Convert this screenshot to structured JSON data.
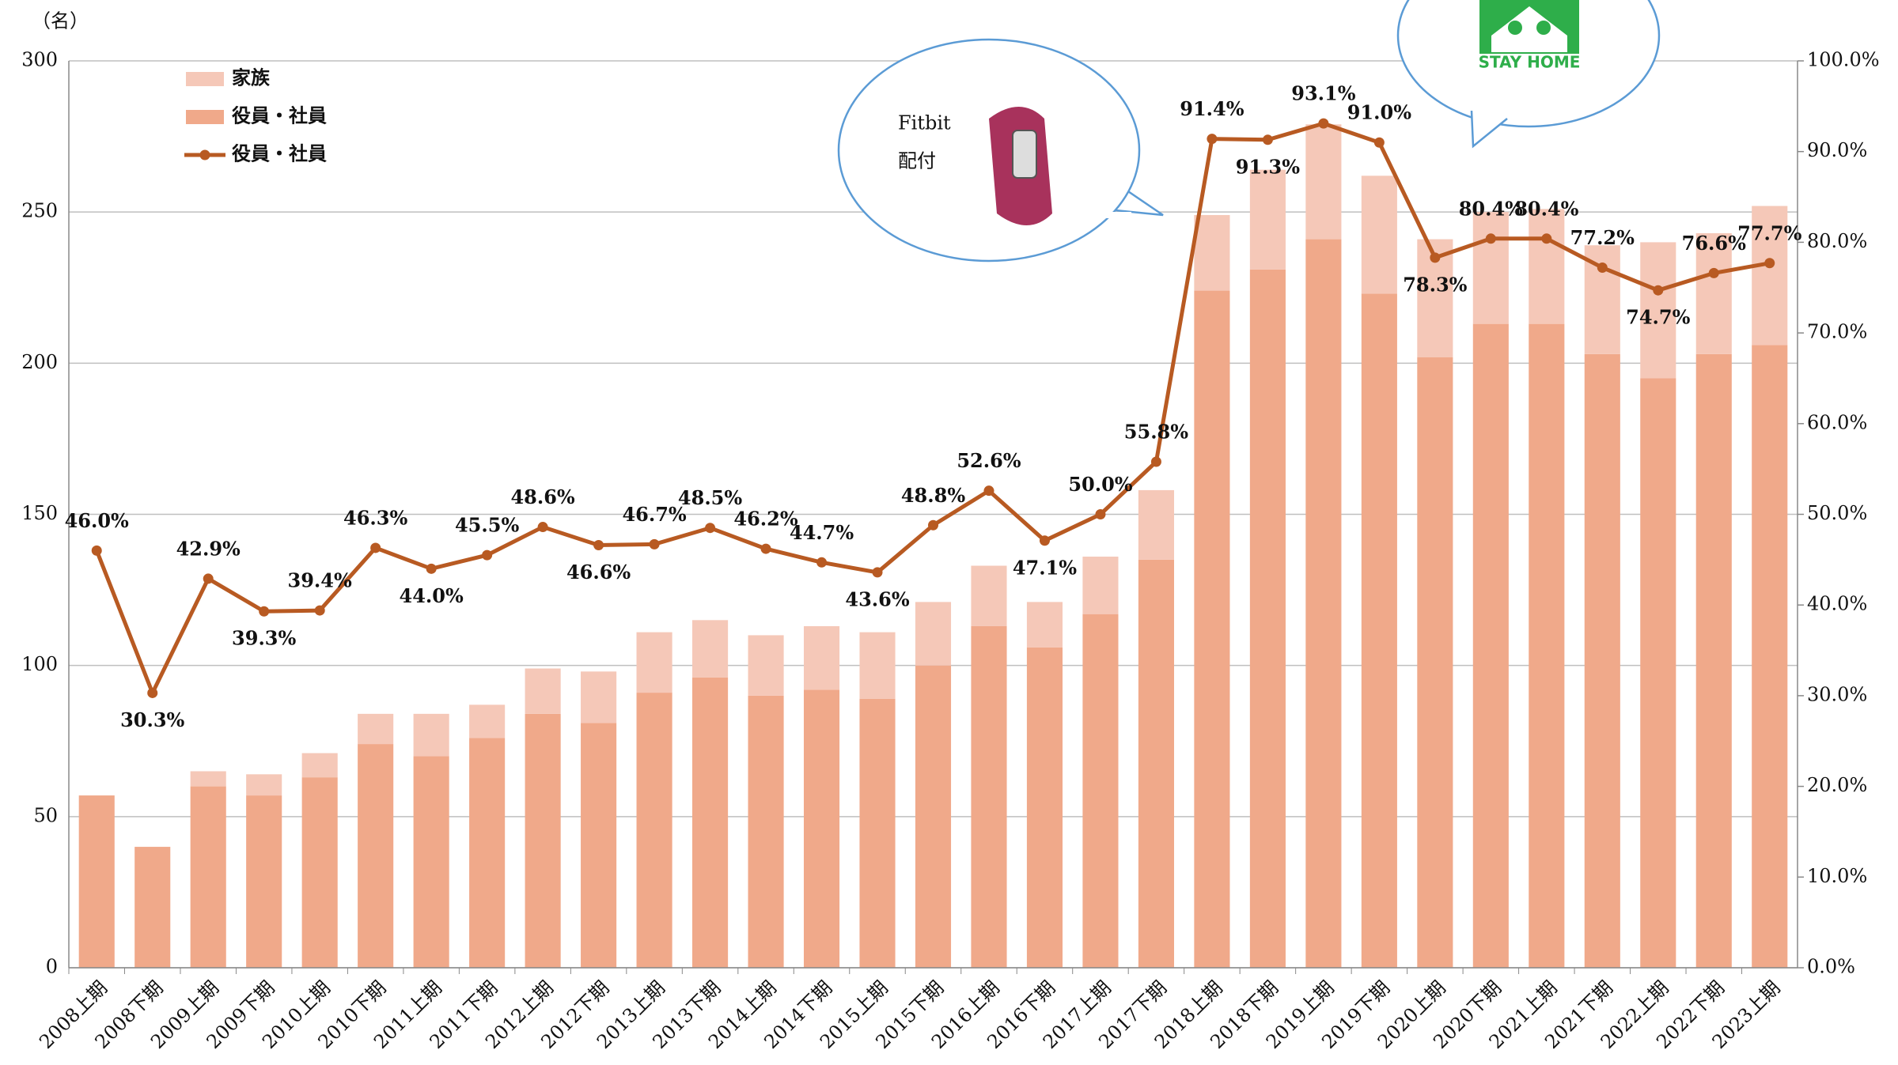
{
  "chart_data": {
    "type": "bar",
    "stacked": true,
    "y_label": "（名）",
    "categories": [
      "2008上期",
      "2008下期",
      "2009上期",
      "2009下期",
      "2010上期",
      "2010下期",
      "2011上期",
      "2011下期",
      "2012上期",
      "2012下期",
      "2013上期",
      "2013下期",
      "2014上期",
      "2014下期",
      "2015上期",
      "2015下期",
      "2016上期",
      "2016下期",
      "2017上期",
      "2017下期",
      "2018上期",
      "2018下期",
      "2019上期",
      "2019下期",
      "2020上期",
      "2020下期",
      "2021上期",
      "2021下期",
      "2022上期",
      "2022下期",
      "2023上期"
    ],
    "series": [
      {
        "name": "役員・社員",
        "type": "bar",
        "color": "#f0a98a",
        "values": [
          57,
          40,
          60,
          57,
          63,
          74,
          70,
          76,
          84,
          81,
          91,
          96,
          90,
          92,
          89,
          100,
          113,
          106,
          117,
          135,
          224,
          231,
          241,
          223,
          202,
          213,
          213,
          203,
          195,
          203,
          206
        ]
      },
      {
        "name": "家族",
        "type": "bar",
        "color": "#f5c8b8",
        "values": [
          0,
          0,
          5,
          7,
          8,
          10,
          14,
          11,
          15,
          17,
          20,
          19,
          20,
          21,
          22,
          21,
          20,
          15,
          19,
          23,
          25,
          33,
          38,
          39,
          39,
          37,
          38,
          36,
          45,
          40,
          46
        ]
      },
      {
        "name": "役員・社員",
        "type": "line",
        "axis": "y2",
        "color": "#b85a22",
        "values": [
          46.0,
          30.3,
          42.9,
          39.3,
          39.4,
          46.3,
          44.0,
          45.5,
          48.6,
          46.6,
          46.7,
          48.5,
          46.2,
          44.7,
          43.6,
          48.8,
          52.6,
          47.1,
          50.0,
          55.8,
          91.4,
          91.3,
          93.1,
          91.0,
          78.3,
          80.4,
          80.4,
          77.2,
          74.7,
          76.6,
          77.7
        ],
        "value_labels": [
          "46.0%",
          "30.3%",
          "42.9%",
          "39.3%",
          "39.4%",
          "46.3%",
          "44.0%",
          "45.5%",
          "48.6%",
          "46.6%",
          "46.7%",
          "48.5%",
          "46.2%",
          "44.7%",
          "43.6%",
          "48.8%",
          "52.6%",
          "47.1%",
          "50.0%",
          "55.8%",
          "91.4%",
          "91.3%",
          "93.1%",
          "91.0%",
          "78.3%",
          "80.4%",
          "80.4%",
          "77.2%",
          "74.7%",
          "76.6%",
          "77.7%"
        ]
      }
    ],
    "ylim": [
      0,
      300
    ],
    "yticks": [
      0,
      50,
      100,
      150,
      200,
      250,
      300
    ],
    "y2lim": [
      0,
      100
    ],
    "y2ticks": [
      {
        "value": 0,
        "label": "0.0%"
      },
      {
        "value": 10,
        "label": "10.0%"
      },
      {
        "value": 20,
        "label": "20.0%"
      },
      {
        "value": 30,
        "label": "30.0%"
      },
      {
        "value": 40,
        "label": "40.0%"
      },
      {
        "value": 50,
        "label": "50.0%"
      },
      {
        "value": 60,
        "label": "60.0%"
      },
      {
        "value": 70,
        "label": "70.0%"
      },
      {
        "value": 80,
        "label": "80.0%"
      },
      {
        "value": 90,
        "label": "90.0%"
      },
      {
        "value": 100,
        "label": "100.0%"
      }
    ],
    "grid": true,
    "legend": "top-left",
    "annotations": [
      "Fitbit",
      "配付",
      "STAY HOME"
    ]
  }
}
